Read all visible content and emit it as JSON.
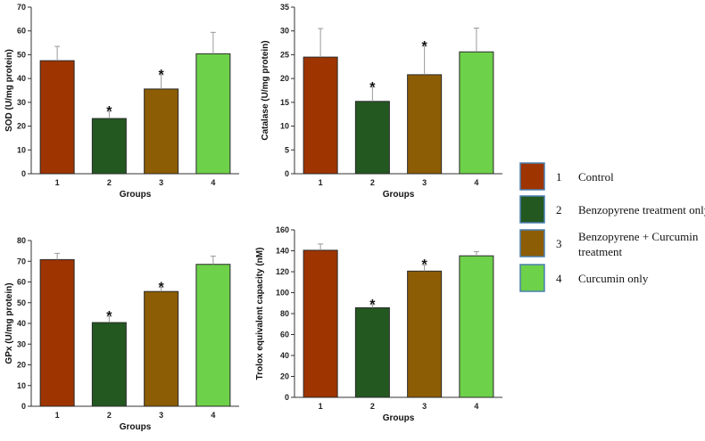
{
  "chart_data": [
    {
      "type": "bar",
      "categories": [
        "1",
        "2",
        "3",
        "4"
      ],
      "values": [
        47.5,
        23.2,
        35.6,
        50.4
      ],
      "errors": [
        6.0,
        3.0,
        6.0,
        9.0
      ],
      "significant": [
        false,
        true,
        true,
        false
      ],
      "ylim": [
        0,
        70
      ],
      "yticks": [
        0,
        10,
        20,
        30,
        40,
        50,
        60,
        70
      ],
      "xlabel": "Groups",
      "ylabel": "SOD (U/mg protein)"
    },
    {
      "type": "bar",
      "categories": [
        "1",
        "2",
        "3",
        "4"
      ],
      "values": [
        24.5,
        15.2,
        20.8,
        25.6
      ],
      "errors": [
        6.0,
        3.0,
        6.0,
        5.0
      ],
      "significant": [
        false,
        true,
        true,
        false
      ],
      "ylim": [
        0,
        35
      ],
      "yticks": [
        0,
        5,
        10,
        15,
        20,
        25,
        30,
        35
      ],
      "xlabel": "Groups",
      "ylabel": "Catalase (U/mg protein)"
    },
    {
      "type": "bar",
      "categories": [
        "1",
        "2",
        "3",
        "4"
      ],
      "values": [
        70.8,
        40.4,
        55.4,
        68.5
      ],
      "errors": [
        3.0,
        3.0,
        2.0,
        4.0
      ],
      "significant": [
        false,
        true,
        true,
        false
      ],
      "ylim": [
        0,
        80
      ],
      "yticks": [
        0,
        10,
        20,
        30,
        40,
        50,
        60,
        70,
        80
      ],
      "xlabel": "Groups",
      "ylabel": "GPx (U/mg protein)"
    },
    {
      "type": "bar",
      "categories": [
        "1",
        "2",
        "3",
        "4"
      ],
      "values": [
        140.5,
        85.6,
        120.6,
        135.2
      ],
      "errors": [
        6.0,
        3.0,
        6.0,
        4.0
      ],
      "significant": [
        false,
        true,
        true,
        false
      ],
      "ylim": [
        0,
        160
      ],
      "yticks": [
        0,
        20,
        40,
        60,
        80,
        100,
        120,
        140,
        160
      ],
      "xlabel": "Groups",
      "ylabel": "Trolox equivalent capacity (nM)"
    }
  ],
  "significance_marker": "*",
  "legend": [
    {
      "number": "1",
      "label_lines": [
        "Control"
      ],
      "color": "#9E3400"
    },
    {
      "number": "2",
      "label_lines": [
        "Benzopyrene treatment only"
      ],
      "color": "#235821"
    },
    {
      "number": "3",
      "label_lines": [
        "Benzopyrene + Curcumin",
        "treatment"
      ],
      "color": "#8C5D05"
    },
    {
      "number": "4",
      "label_lines": [
        "Curcumin only"
      ],
      "color": "#6DD14A"
    }
  ],
  "colors": {
    "bars": [
      "#9E3400",
      "#235821",
      "#8C5D05",
      "#6DD14A"
    ],
    "axis": "#333333",
    "error_bar": "#9A9A9A",
    "legend_border": "#4A7FB0"
  }
}
